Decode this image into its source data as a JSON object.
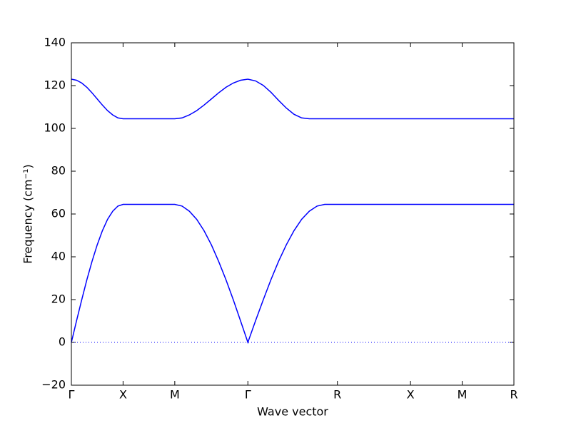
{
  "chart_data": {
    "type": "line",
    "xlabel": "Wave vector",
    "ylabel": "Frequency (cm⁻¹)",
    "x": [
      0,
      0.05,
      0.1,
      0.15,
      0.2,
      0.25,
      0.3,
      0.35,
      0.4,
      0.45,
      0.5,
      1.0,
      1.071,
      1.141,
      1.212,
      1.283,
      1.354,
      1.424,
      1.495,
      1.566,
      1.636,
      1.707,
      1.781,
      1.856,
      1.93,
      2.004,
      2.079,
      2.153,
      2.227,
      2.301,
      2.376,
      2.45,
      4.28
    ],
    "series": [
      {
        "color": "#0000ff",
        "values": [
          0,
          10.1,
          19.9,
          29.3,
          37.9,
          45.6,
          52.2,
          57.5,
          61.3,
          63.7,
          64.5,
          64.5,
          63.7,
          61.3,
          57.5,
          52.2,
          45.6,
          37.9,
          29.3,
          19.9,
          10.1,
          0,
          10.1,
          19.9,
          29.3,
          37.9,
          45.6,
          52.2,
          57.5,
          61.3,
          63.7,
          64.5,
          64.5
        ]
      },
      {
        "color": "#0000ff",
        "values": [
          123,
          122.5,
          121.2,
          119.2,
          116.6,
          113.75,
          110.9,
          108.3,
          106.3,
          104.9,
          104.5,
          104.5,
          104.9,
          106.3,
          108.3,
          110.9,
          113.75,
          116.6,
          119.2,
          121.2,
          122.5,
          123,
          122.2,
          120.1,
          116.9,
          113.1,
          109.5,
          106.6,
          104.9,
          104.5,
          104.5,
          104.5,
          104.5
        ]
      }
    ],
    "xlim": [
      0,
      4.28
    ],
    "xticks": [
      {
        "value": 0,
        "label": "Γ"
      },
      {
        "value": 0.5,
        "label": "X"
      },
      {
        "value": 1.0,
        "label": "M"
      },
      {
        "value": 1.707,
        "label": "Γ"
      },
      {
        "value": 2.573,
        "label": "R"
      },
      {
        "value": 3.28,
        "label": "X"
      },
      {
        "value": 3.78,
        "label": "M"
      },
      {
        "value": 4.28,
        "label": "R"
      }
    ],
    "ylim": [
      -20,
      140
    ],
    "yticks": [
      {
        "value": -20,
        "label": "−20"
      },
      0,
      20,
      40,
      60,
      80,
      100,
      120,
      140
    ],
    "grid": false
  }
}
